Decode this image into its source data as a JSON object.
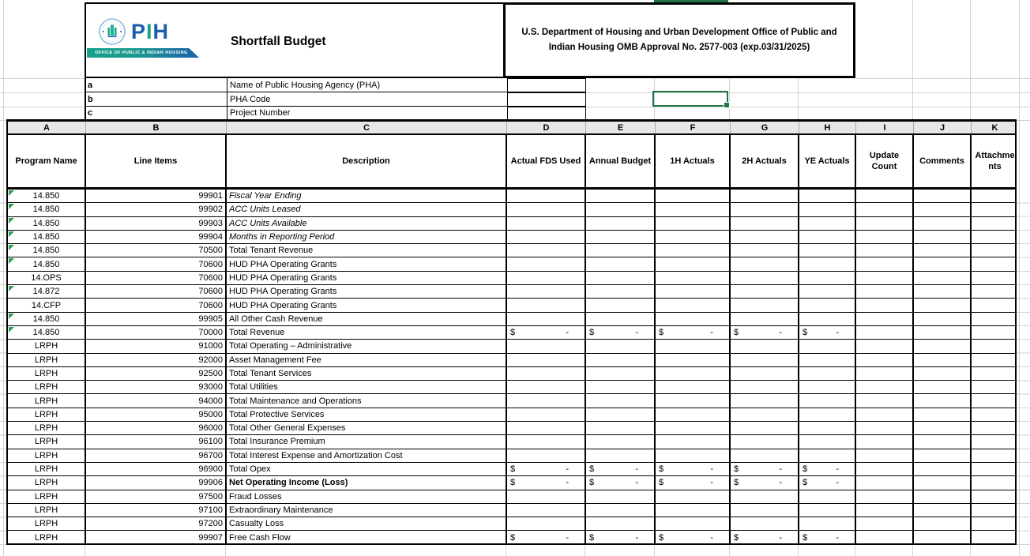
{
  "header": {
    "logo": {
      "brand_p": "P",
      "brand_i": "I",
      "brand_h": "H",
      "banner": "OFFICE OF PUBLIC & INDIAN HOUSING"
    },
    "title": "Shortfall Budget",
    "omb_line1": "U.S. Department of Housing and Urban Development Office of Public and",
    "omb_line2": "Indian Housing OMB Approval No. 2577-003 (exp.03/31/2025)"
  },
  "info_rows": [
    {
      "key": "a",
      "label": "Name of Public Housing Agency (PHA)",
      "value": ""
    },
    {
      "key": "b",
      "label": "PHA Code",
      "value": ""
    },
    {
      "key": "c",
      "label": "Project Number",
      "value": ""
    }
  ],
  "table": {
    "column_letters": [
      "A",
      "B",
      "C",
      "D",
      "E",
      "F",
      "G",
      "H",
      "I",
      "J",
      "K"
    ],
    "headers": [
      "Program Name",
      "Line Items",
      "Description",
      "Actual FDS Used",
      "Annual Budget",
      "1H Actuals",
      "2H Actuals",
      "YE Actuals",
      "Update Count",
      "Comments",
      "Attachments"
    ],
    "money_symbol": "$",
    "money_value": "-",
    "rows": [
      {
        "program": "14.850",
        "line": "99901",
        "desc": "Fiscal Year Ending",
        "italic": true,
        "flag": true,
        "money": false,
        "bold": false
      },
      {
        "program": "14.850",
        "line": "99902",
        "desc": "ACC Units Leased",
        "italic": true,
        "flag": true,
        "money": false,
        "bold": false
      },
      {
        "program": "14.850",
        "line": "99903",
        "desc": "ACC Units Available",
        "italic": true,
        "flag": true,
        "money": false,
        "bold": false
      },
      {
        "program": "14.850",
        "line": "99904",
        "desc": "Months in Reporting Period",
        "italic": true,
        "flag": true,
        "money": false,
        "bold": false
      },
      {
        "program": "14.850",
        "line": "70500",
        "desc": "Total Tenant Revenue",
        "italic": false,
        "flag": true,
        "money": false,
        "bold": false
      },
      {
        "program": "14.850",
        "line": "70600",
        "desc": "HUD PHA Operating Grants",
        "italic": false,
        "flag": true,
        "money": false,
        "bold": false
      },
      {
        "program": "14.OPS",
        "line": "70600",
        "desc": "HUD PHA Operating Grants",
        "italic": false,
        "flag": false,
        "money": false,
        "bold": false
      },
      {
        "program": "14.872",
        "line": "70600",
        "desc": "HUD PHA Operating Grants",
        "italic": false,
        "flag": true,
        "money": false,
        "bold": false
      },
      {
        "program": "14.CFP",
        "line": "70600",
        "desc": "HUD PHA Operating Grants",
        "italic": false,
        "flag": false,
        "money": false,
        "bold": false
      },
      {
        "program": "14.850",
        "line": "99905",
        "desc": "All Other Cash Revenue",
        "italic": false,
        "flag": true,
        "money": false,
        "bold": false
      },
      {
        "program": "14.850",
        "line": "70000",
        "desc": "Total Revenue",
        "italic": false,
        "flag": true,
        "money": true,
        "bold": false
      },
      {
        "program": "LRPH",
        "line": "91000",
        "desc": "Total Operating – Administrative",
        "italic": false,
        "flag": false,
        "money": false,
        "bold": false
      },
      {
        "program": "LRPH",
        "line": "92000",
        "desc": "Asset Management Fee",
        "italic": false,
        "flag": false,
        "money": false,
        "bold": false
      },
      {
        "program": "LRPH",
        "line": "92500",
        "desc": "Total Tenant Services",
        "italic": false,
        "flag": false,
        "money": false,
        "bold": false
      },
      {
        "program": "LRPH",
        "line": "93000",
        "desc": "Total Utilities",
        "italic": false,
        "flag": false,
        "money": false,
        "bold": false
      },
      {
        "program": "LRPH",
        "line": "94000",
        "desc": "Total Maintenance and Operations",
        "italic": false,
        "flag": false,
        "money": false,
        "bold": false
      },
      {
        "program": "LRPH",
        "line": "95000",
        "desc": "Total Protective Services",
        "italic": false,
        "flag": false,
        "money": false,
        "bold": false
      },
      {
        "program": "LRPH",
        "line": "96000",
        "desc": "Total Other General Expenses",
        "italic": false,
        "flag": false,
        "money": false,
        "bold": false
      },
      {
        "program": "LRPH",
        "line": "96100",
        "desc": "Total Insurance Premium",
        "italic": false,
        "flag": false,
        "money": false,
        "bold": false
      },
      {
        "program": "LRPH",
        "line": "96700",
        "desc": "Total Interest Expense and Amortization Cost",
        "italic": false,
        "flag": false,
        "money": false,
        "bold": false
      },
      {
        "program": "LRPH",
        "line": "96900",
        "desc": "Total Opex",
        "italic": false,
        "flag": false,
        "money": true,
        "bold": false
      },
      {
        "program": "LRPH",
        "line": "99906",
        "desc": "Net Operating Income (Loss)",
        "italic": false,
        "flag": false,
        "money": true,
        "bold": true
      },
      {
        "program": "LRPH",
        "line": "97500",
        "desc": "Fraud Losses",
        "italic": false,
        "flag": false,
        "money": false,
        "bold": false
      },
      {
        "program": "LRPH",
        "line": "97100",
        "desc": "Extraordinary Maintenance",
        "italic": false,
        "flag": false,
        "money": false,
        "bold": false
      },
      {
        "program": "LRPH",
        "line": "97200",
        "desc": "Casualty Loss",
        "italic": false,
        "flag": false,
        "money": false,
        "bold": false
      },
      {
        "program": "LRPH",
        "line": "99907",
        "desc": "Free Cash Flow",
        "italic": false,
        "flag": false,
        "money": true,
        "bold": false
      }
    ]
  },
  "selection": {
    "value": ""
  },
  "colors": {
    "selection_green": "#217346",
    "flag_green": "#2e9e4f",
    "letter_strip_gray": "#e7e7e7",
    "gridline_gray": "#d2d2d2",
    "brand_blue": "#1b5faa",
    "brand_teal": "#16a28a"
  }
}
